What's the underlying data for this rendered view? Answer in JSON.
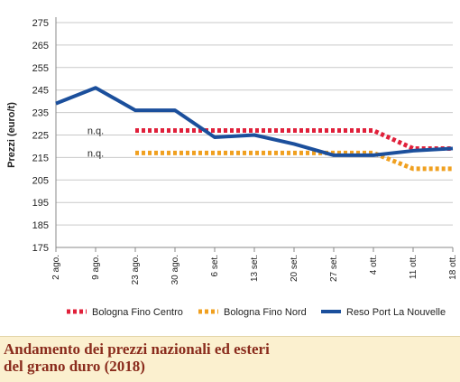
{
  "chart_data": {
    "type": "line",
    "ylabel": "Prezzi (euro/t)",
    "xlabel": "",
    "ylim": [
      175,
      275
    ],
    "yticks": [
      175,
      185,
      195,
      205,
      215,
      225,
      235,
      245,
      255,
      265,
      275
    ],
    "categories": [
      "2 ago.",
      "9 ago.",
      "23 ago.",
      "30 ago.",
      "6 set.",
      "13 set.",
      "20 set.",
      "27 set.",
      "4 ott.",
      "11 ott.",
      "18 ott."
    ],
    "grid": "horizontal",
    "legend_position": "bottom",
    "annotations": [
      {
        "text": "n.q.",
        "x": "9 ago.",
        "y": 227
      },
      {
        "text": "n.q.",
        "x": "9 ago.",
        "y": 217
      }
    ],
    "series": [
      {
        "name": "Bologna Fino Centro",
        "color": "#e0203a",
        "style": "dotted",
        "values": [
          null,
          null,
          227,
          227,
          227,
          227,
          227,
          227,
          227,
          219,
          219
        ]
      },
      {
        "name": "Bologna Fino Nord",
        "color": "#f0a020",
        "style": "dotted",
        "values": [
          null,
          null,
          217,
          217,
          217,
          217,
          217,
          217,
          217,
          210,
          210
        ]
      },
      {
        "name": "Reso Port La Nouvelle",
        "color": "#1b4f9c",
        "style": "solid",
        "values": [
          239,
          246,
          236,
          236,
          224,
          225,
          221,
          216,
          216,
          218,
          219
        ]
      }
    ]
  },
  "caption": {
    "line1": "Andamento dei prezzi nazionali ed esteri",
    "line2": "del grano duro (2018)"
  }
}
